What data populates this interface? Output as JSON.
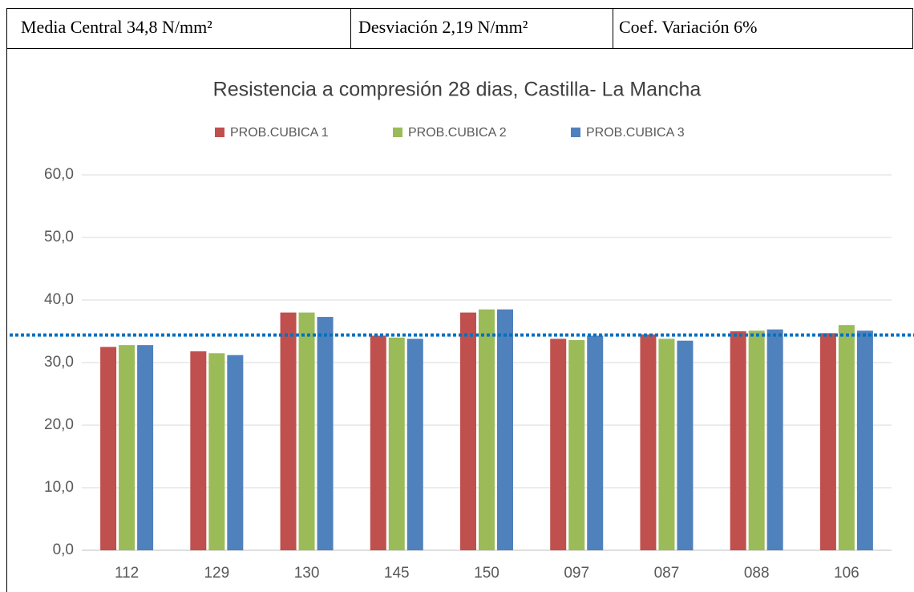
{
  "header": {
    "cells": [
      "Media Central 34,8 N/mm²",
      "Desviación 2,19 N/mm²",
      "Coef. Variación 6%"
    ]
  },
  "chart_data": {
    "type": "bar",
    "title": "Resistencia a compresión 28 dias, Castilla- La Mancha",
    "categories": [
      "112",
      "129",
      "130",
      "145",
      "150",
      "097",
      "087",
      "088",
      "106"
    ],
    "series": [
      {
        "name": "PROB.CUBICA 1",
        "color": "#c0504d",
        "values": [
          32.5,
          31.8,
          38.0,
          34.3,
          38.0,
          33.8,
          34.5,
          35.0,
          34.7
        ]
      },
      {
        "name": "PROB.CUBICA 2",
        "color": "#9bbb59",
        "values": [
          32.8,
          31.5,
          38.0,
          34.0,
          38.5,
          33.6,
          33.8,
          35.1,
          36.0
        ]
      },
      {
        "name": "PROB.CUBICA 3",
        "color": "#4f81bd",
        "values": [
          32.8,
          31.2,
          37.3,
          33.8,
          38.5,
          34.3,
          33.5,
          35.3,
          35.1
        ]
      }
    ],
    "reference_line": {
      "value": 34.4,
      "color": "#0070c0"
    },
    "ylim": [
      0,
      60
    ],
    "yticks": [
      {
        "value": 0,
        "label": "0,0"
      },
      {
        "value": 10,
        "label": "10,0"
      },
      {
        "value": 20,
        "label": "20,0"
      },
      {
        "value": 30,
        "label": "30,0"
      },
      {
        "value": 40,
        "label": "40,0"
      },
      {
        "value": 50,
        "label": "50,0"
      },
      {
        "value": 60,
        "label": "60,0"
      }
    ],
    "grid": true,
    "legend": "top"
  }
}
